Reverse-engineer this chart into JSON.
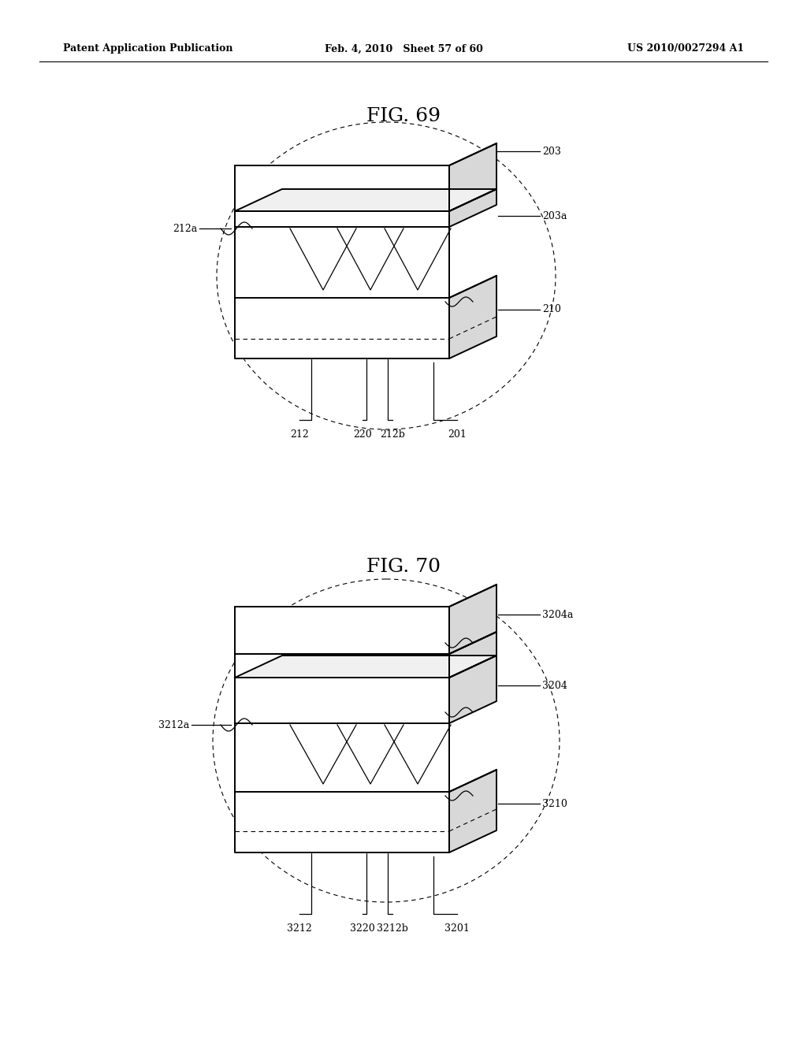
{
  "bg_color": "#ffffff",
  "header_left": "Patent Application Publication",
  "header_mid": "Feb. 4, 2010   Sheet 57 of 60",
  "header_right": "US 2010/0027294 A1",
  "fig69_title": "FIG. 69",
  "fig70_title": "FIG. 70",
  "line_color": "#000000",
  "lw_main": 1.4,
  "lw_thin": 0.9,
  "lw_dashed": 0.8,
  "fs_header": 9,
  "fs_title": 18,
  "fs_label": 9
}
